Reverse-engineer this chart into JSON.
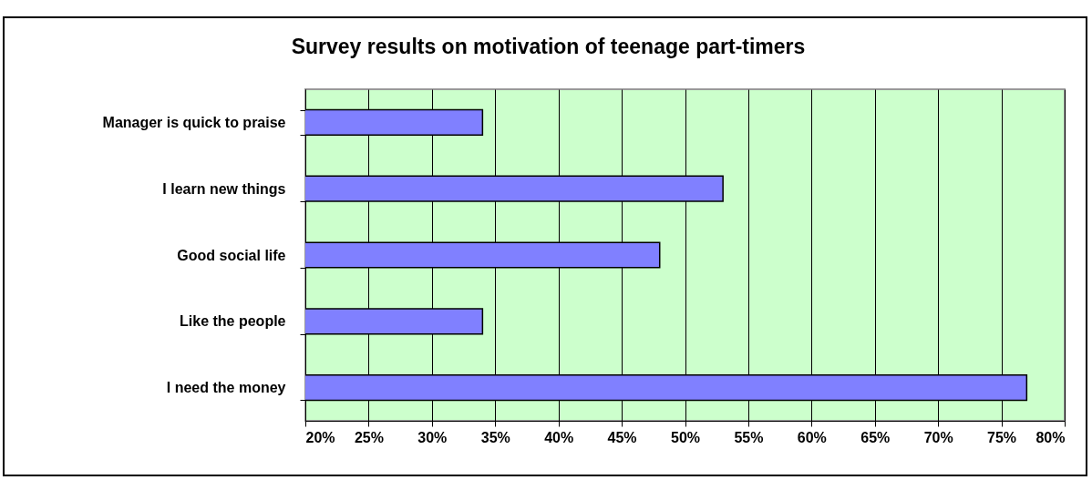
{
  "chart_data": {
    "type": "bar",
    "orientation": "horizontal",
    "title": "Survey results on motivation of teenage part-timers",
    "categories": [
      "Manager is quick to praise",
      "I learn new things",
      "Good social life",
      "Like the people",
      "I need the money"
    ],
    "values": [
      34,
      53,
      48,
      34,
      77
    ],
    "color": "#8080ff",
    "xlim": [
      20,
      80
    ],
    "xticks": [
      {
        "value": 20,
        "label": "20%"
      },
      {
        "value": 25,
        "label": "25%"
      },
      {
        "value": 30,
        "label": "30%"
      },
      {
        "value": 35,
        "label": "35%"
      },
      {
        "value": 40,
        "label": "40%"
      },
      {
        "value": 45,
        "label": "45%"
      },
      {
        "value": 50,
        "label": "50%"
      },
      {
        "value": 55,
        "label": "55%"
      },
      {
        "value": 60,
        "label": "60%"
      },
      {
        "value": 65,
        "label": "65%"
      },
      {
        "value": 70,
        "label": "70%"
      },
      {
        "value": 75,
        "label": "75%"
      },
      {
        "value": 80,
        "label": "80%"
      }
    ],
    "grid": "x"
  }
}
